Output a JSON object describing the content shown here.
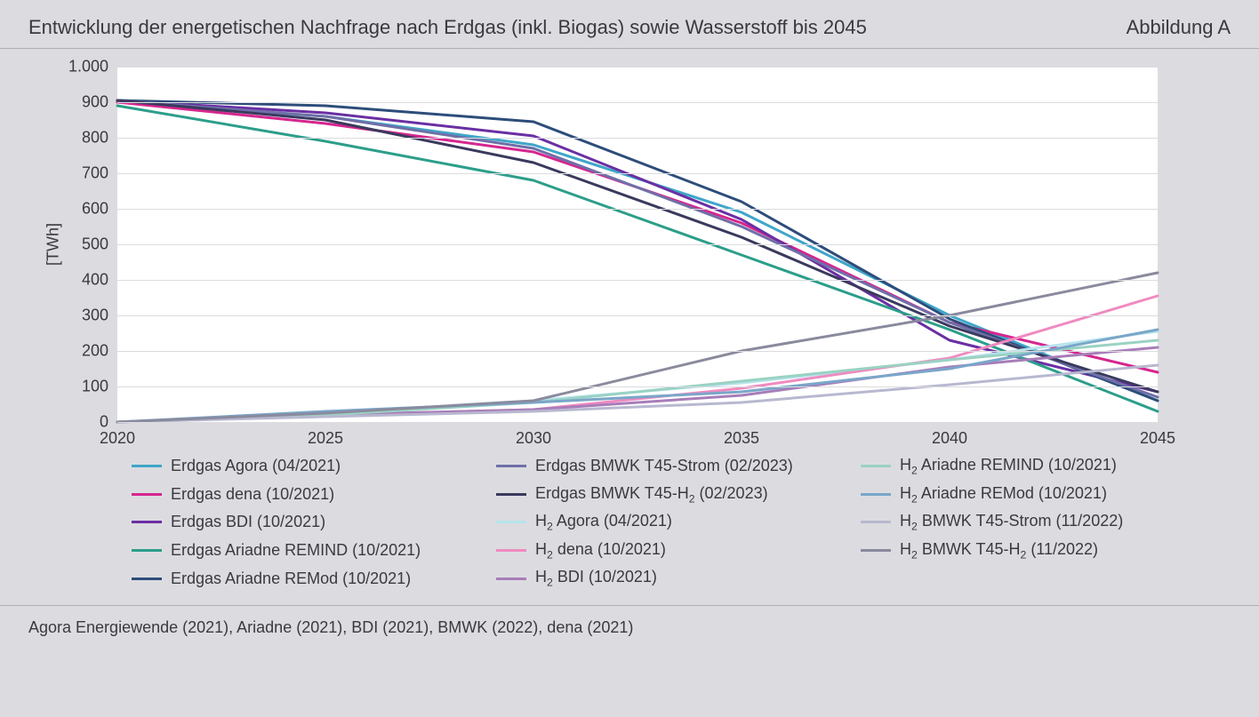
{
  "header": {
    "title": "Entwicklung der energetischen Nachfrage nach Erdgas (inkl. Biogas) sowie Wasserstoff bis 2045",
    "figure_label": "Abbildung A"
  },
  "footer": {
    "source": "Agora Energiewende (2021), Ariadne (2021), BDI (2021), BMWK (2022), dena (2021)"
  },
  "chart": {
    "type": "line",
    "background_color": "#ffffff",
    "page_background": "#dcdce0",
    "grid_color": "#dcdce0",
    "line_width": 3,
    "y_axis": {
      "title": "[TWh]",
      "min": 0,
      "max": 1000,
      "tick_step": 100,
      "tick_labels": [
        "0",
        "100",
        "200",
        "300",
        "400",
        "500",
        "600",
        "700",
        "800",
        "900",
        "1.000"
      ],
      "label_fontsize": 18
    },
    "x_axis": {
      "values": [
        2020,
        2025,
        2030,
        2035,
        2040,
        2045
      ],
      "min": 2020,
      "max": 2045,
      "tick_labels": [
        "2020",
        "2025",
        "2030",
        "2035",
        "2040",
        "2045"
      ],
      "label_fontsize": 18
    },
    "series": [
      {
        "id": "erdgas-agora",
        "label": "Erdgas Agora (04/2021)",
        "color": "#3fa6c9",
        "y": [
          900,
          860,
          780,
          590,
          300,
          60
        ]
      },
      {
        "id": "erdgas-dena",
        "label": "Erdgas dena (10/2021)",
        "color": "#d6268f",
        "y": [
          900,
          840,
          760,
          560,
          280,
          140
        ]
      },
      {
        "id": "erdgas-bdi",
        "label": "Erdgas BDI (10/2021)",
        "color": "#6a2fa3",
        "y": [
          905,
          870,
          805,
          570,
          230,
          85
        ]
      },
      {
        "id": "erdgas-ariadne-remind",
        "label": "Erdgas Ariadne REMIND (10/2021)",
        "color": "#2c9e8a",
        "y": [
          890,
          790,
          680,
          470,
          260,
          30
        ]
      },
      {
        "id": "erdgas-ariadne-remod",
        "label": "Erdgas Ariadne REMod (10/2021)",
        "color": "#2d4d7a",
        "y": [
          905,
          890,
          845,
          620,
          290,
          60
        ]
      },
      {
        "id": "erdgas-bmwk-t45-strom",
        "label": "Erdgas BMWK T45-Strom (02/2023)",
        "color": "#6f6fa8",
        "y": [
          905,
          860,
          770,
          550,
          280,
          70
        ]
      },
      {
        "id": "erdgas-bmwk-t45-h2",
        "label": "Erdgas BMWK T45-H₂ (02/2023)",
        "color": "#3a3a5e",
        "y": [
          905,
          850,
          730,
          520,
          270,
          85
        ]
      },
      {
        "id": "h2-agora",
        "label": "H₂ Agora (04/2021)",
        "color": "#b7e3ed",
        "y": [
          0,
          25,
          60,
          110,
          175,
          255
        ]
      },
      {
        "id": "h2-dena",
        "label": "H₂ dena (10/2021)",
        "color": "#ef8bc1",
        "y": [
          0,
          20,
          35,
          95,
          180,
          355
        ]
      },
      {
        "id": "h2-bdi",
        "label": "H₂ BDI (10/2021)",
        "color": "#a87db9",
        "y": [
          0,
          20,
          35,
          75,
          155,
          210
        ]
      },
      {
        "id": "h2-ariadne-remind",
        "label": "H₂ Ariadne REMIND (10/2021)",
        "color": "#9ad2c3",
        "y": [
          0,
          20,
          55,
          115,
          175,
          230
        ]
      },
      {
        "id": "h2-ariadne-remod",
        "label": "H₂ Ariadne REMod (10/2021)",
        "color": "#7aa6c9",
        "y": [
          0,
          30,
          55,
          85,
          150,
          260
        ]
      },
      {
        "id": "h2-bmwk-t45-strom",
        "label": "H₂ BMWK T45-Strom (11/2022)",
        "color": "#b8b8d0",
        "y": [
          0,
          15,
          30,
          55,
          105,
          160
        ]
      },
      {
        "id": "h2-bmwk-t45-h2",
        "label": "H₂ BMWK T45-H₂ (11/2022)",
        "color": "#8a8a9e",
        "y": [
          0,
          25,
          60,
          200,
          300,
          420
        ]
      }
    ],
    "legend": {
      "columns": 3,
      "fontsize": 18,
      "order": [
        "erdgas-agora",
        "erdgas-bmwk-t45-strom",
        "h2-ariadne-remind",
        "erdgas-dena",
        "erdgas-bmwk-t45-h2",
        "h2-ariadne-remod",
        "erdgas-bdi",
        "h2-agora",
        "h2-bmwk-t45-strom",
        "erdgas-ariadne-remind",
        "h2-dena",
        "h2-bmwk-t45-h2",
        "erdgas-ariadne-remod",
        "h2-bdi"
      ]
    }
  }
}
